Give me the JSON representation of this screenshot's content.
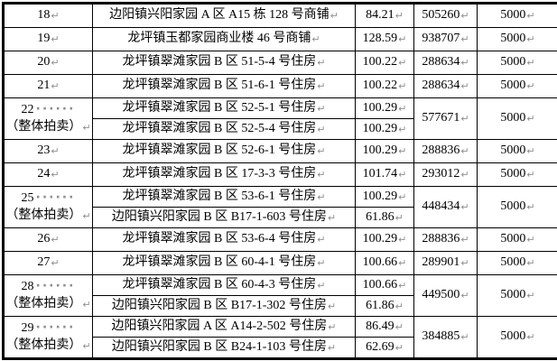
{
  "page": {
    "background": "#ffffff",
    "border_color": "#000000",
    "text_color": "#000000"
  },
  "formatting_marks": {
    "paragraph_mark": "↵",
    "space_dots": "······",
    "mark_color": "#8f8f8f"
  },
  "table": {
    "columns": [
      "row-number",
      "property-description",
      "area",
      "price",
      "deposit"
    ],
    "rows": [
      {
        "no": "18",
        "price": "505260",
        "deposit": "5000",
        "items": [
          {
            "desc": "边阳镇兴阳家园 A 区 A15 栋 128 号商铺",
            "area": "84.21"
          }
        ]
      },
      {
        "no": "19",
        "price": "938707",
        "deposit": "5000",
        "items": [
          {
            "desc": "龙坪镇玉都家园商业楼 46 号商铺",
            "area": "128.59"
          }
        ]
      },
      {
        "no": "20",
        "price": "288634",
        "deposit": "5000",
        "items": [
          {
            "desc": "龙坪镇翠滩家园 B 区 51-5-4 号住房",
            "area": "100.22"
          }
        ]
      },
      {
        "no": "21",
        "price": "288634",
        "deposit": "5000",
        "items": [
          {
            "desc": "龙坪镇翠滩家园 B 区 51-6-1 号住房",
            "area": "100.22"
          }
        ]
      },
      {
        "no": "22",
        "note": "（整体拍卖）",
        "price": "577671",
        "deposit": "5000",
        "items": [
          {
            "desc": "龙坪镇翠滩家园 B 区 52-5-1 号住房",
            "area": "100.29"
          },
          {
            "desc": "龙坪镇翠滩家园 B 区 52-5-4 号住房",
            "area": "100.29"
          }
        ]
      },
      {
        "no": "23",
        "price": "288836",
        "deposit": "5000",
        "items": [
          {
            "desc": "龙坪镇翠滩家园 B 区 52-6-1 号住房",
            "area": "100.29"
          }
        ]
      },
      {
        "no": "24",
        "price": "293012",
        "deposit": "5000",
        "items": [
          {
            "desc": "龙坪镇翠滩家园 B 区 17-3-3 号住房",
            "area": "101.74"
          }
        ]
      },
      {
        "no": "25",
        "note": "（整体拍卖）",
        "price": "448434",
        "deposit": "5000",
        "items": [
          {
            "desc": "龙坪镇翠滩家园 B 区 53-6-1 号住房",
            "area": "100.29"
          },
          {
            "desc": "边阳镇兴阳家园 B 区 B17-1-603 号住房",
            "area": "61.86"
          }
        ]
      },
      {
        "no": "26",
        "price": "288836",
        "deposit": "5000",
        "items": [
          {
            "desc": "龙坪镇翠滩家园 B 区 53-6-4 号住房",
            "area": "100.29"
          }
        ]
      },
      {
        "no": "27",
        "price": "289901",
        "deposit": "5000",
        "items": [
          {
            "desc": "龙坪镇翠滩家园 B 区 60-4-1 号住房",
            "area": "100.66"
          }
        ]
      },
      {
        "no": "28",
        "note": "（整体拍卖）",
        "price": "449500",
        "deposit": "5000",
        "items": [
          {
            "desc": "龙坪镇翠滩家园 B 区 60-4-3 号住房",
            "area": "100.66"
          },
          {
            "desc": "边阳镇兴阳家园 B 区 B17-1-302 号住房",
            "area": "61.86"
          }
        ]
      },
      {
        "no": "29",
        "note": "（整体拍卖）",
        "price": "384885",
        "deposit": "5000",
        "items": [
          {
            "desc": "边阳镇兴阳家园 A 区 A14-2-502 号住房",
            "area": "86.49"
          },
          {
            "desc": "边阳镇兴阳家园 B 区 B24-1-103 号住房",
            "area": "62.69"
          }
        ]
      }
    ]
  }
}
